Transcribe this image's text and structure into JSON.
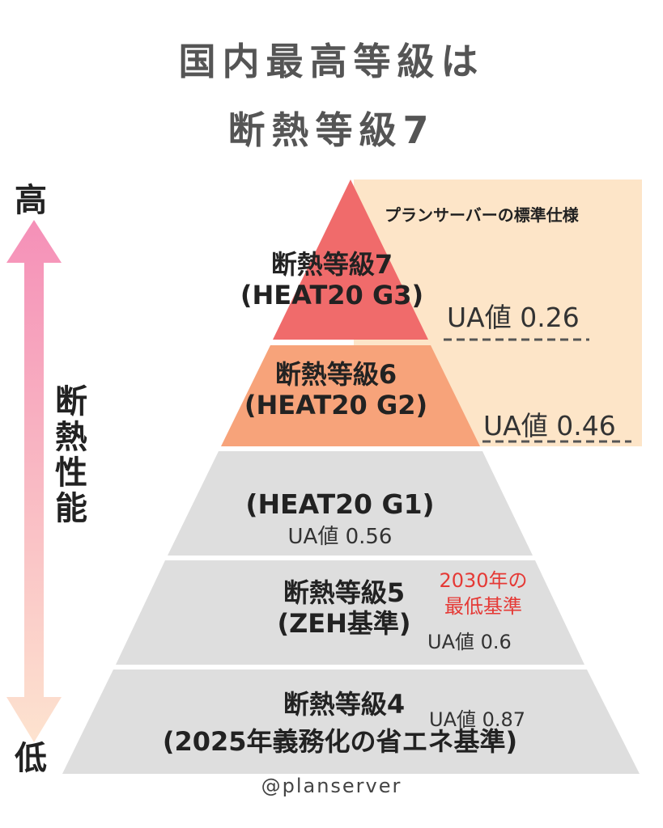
{
  "title": {
    "line1": "国内最高等級は",
    "line2": "断熱等級7"
  },
  "axis": {
    "high": "高",
    "low": "低",
    "label": "断熱性能"
  },
  "plan_label": "プランサーバーの標準仕様",
  "tiers": {
    "grade7": {
      "name": "断熱等級7",
      "sub": "(HEAT20 G3)",
      "ua": "UA値 0.26"
    },
    "grade6": {
      "name": "断熱等級6",
      "sub": "(HEAT20 G2)",
      "ua": "UA値 0.46"
    },
    "g1": {
      "sub": "(HEAT20 G1)",
      "ua": "UA値 0.56"
    },
    "grade5": {
      "name": "断熱等級5",
      "sub": "(ZEH基準)",
      "ua": "UA値 0.6",
      "note_line1": "2030年の",
      "note_line2": "最低基準"
    },
    "grade4": {
      "name": "断熱等級4",
      "sub": "(2025年義務化の省エネ基準)",
      "ua": "UA値 0.87"
    }
  },
  "watermark": "@planserver",
  "colors": {
    "grade7": "#f06b6b",
    "grade6": "#f7a37a",
    "lower": "#dedede",
    "highlight_box": "#fde5c8",
    "note": "#e53935",
    "arrow_top": "#f590b8",
    "arrow_bottom": "#fde3cf"
  }
}
